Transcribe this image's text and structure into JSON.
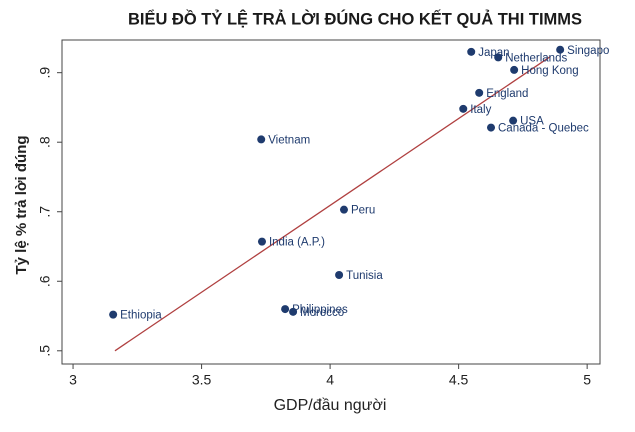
{
  "chart_data": {
    "type": "scatter",
    "title": "BIỂU ĐỒ TỶ LỆ TRẢ LỜI ĐÚNG CHO  KẾT QUẢ THI TIMMS",
    "x_label": "GDP/đầu người",
    "y_label": "Tỷ lệ % trả lời đúng",
    "labels": [
      "Singapo",
      "Japan",
      "Netherlands",
      "Hong Kong",
      "England",
      "Italy",
      "USA",
      "Canada - Quebec",
      "Vietnam",
      "Peru",
      "India (A.P.)",
      "Tunisia",
      "Philippines",
      "Morocco",
      "Ethiopia"
    ],
    "x": [
      4.895,
      4.549,
      4.654,
      4.716,
      4.58,
      4.518,
      4.712,
      4.626,
      3.732,
      4.054,
      3.735,
      4.035,
      3.825,
      3.856,
      3.156
    ],
    "values": [
      0.933,
      0.93,
      0.922,
      0.904,
      0.871,
      0.848,
      0.831,
      0.821,
      0.804,
      0.703,
      0.657,
      0.609,
      0.56,
      0.556,
      0.552
    ],
    "color": "#1f3b6e",
    "fit_line": {
      "x": [
        3.163,
        4.856
      ],
      "y": [
        0.5,
        0.923
      ],
      "color": "#b04040"
    },
    "xlim": [
      2.957,
      5.05
    ],
    "ylim": [
      0.481,
      0.947
    ],
    "xticks": [
      3,
      3.5,
      4,
      4.5,
      5
    ],
    "yticks": [
      {
        "value": 0.5,
        "label": ".5"
      },
      {
        "value": 0.6,
        "label": ".6"
      },
      {
        "value": 0.7,
        "label": ".7"
      },
      {
        "value": 0.8,
        "label": ".8"
      },
      {
        "value": 0.9,
        "label": ".9"
      }
    ]
  }
}
